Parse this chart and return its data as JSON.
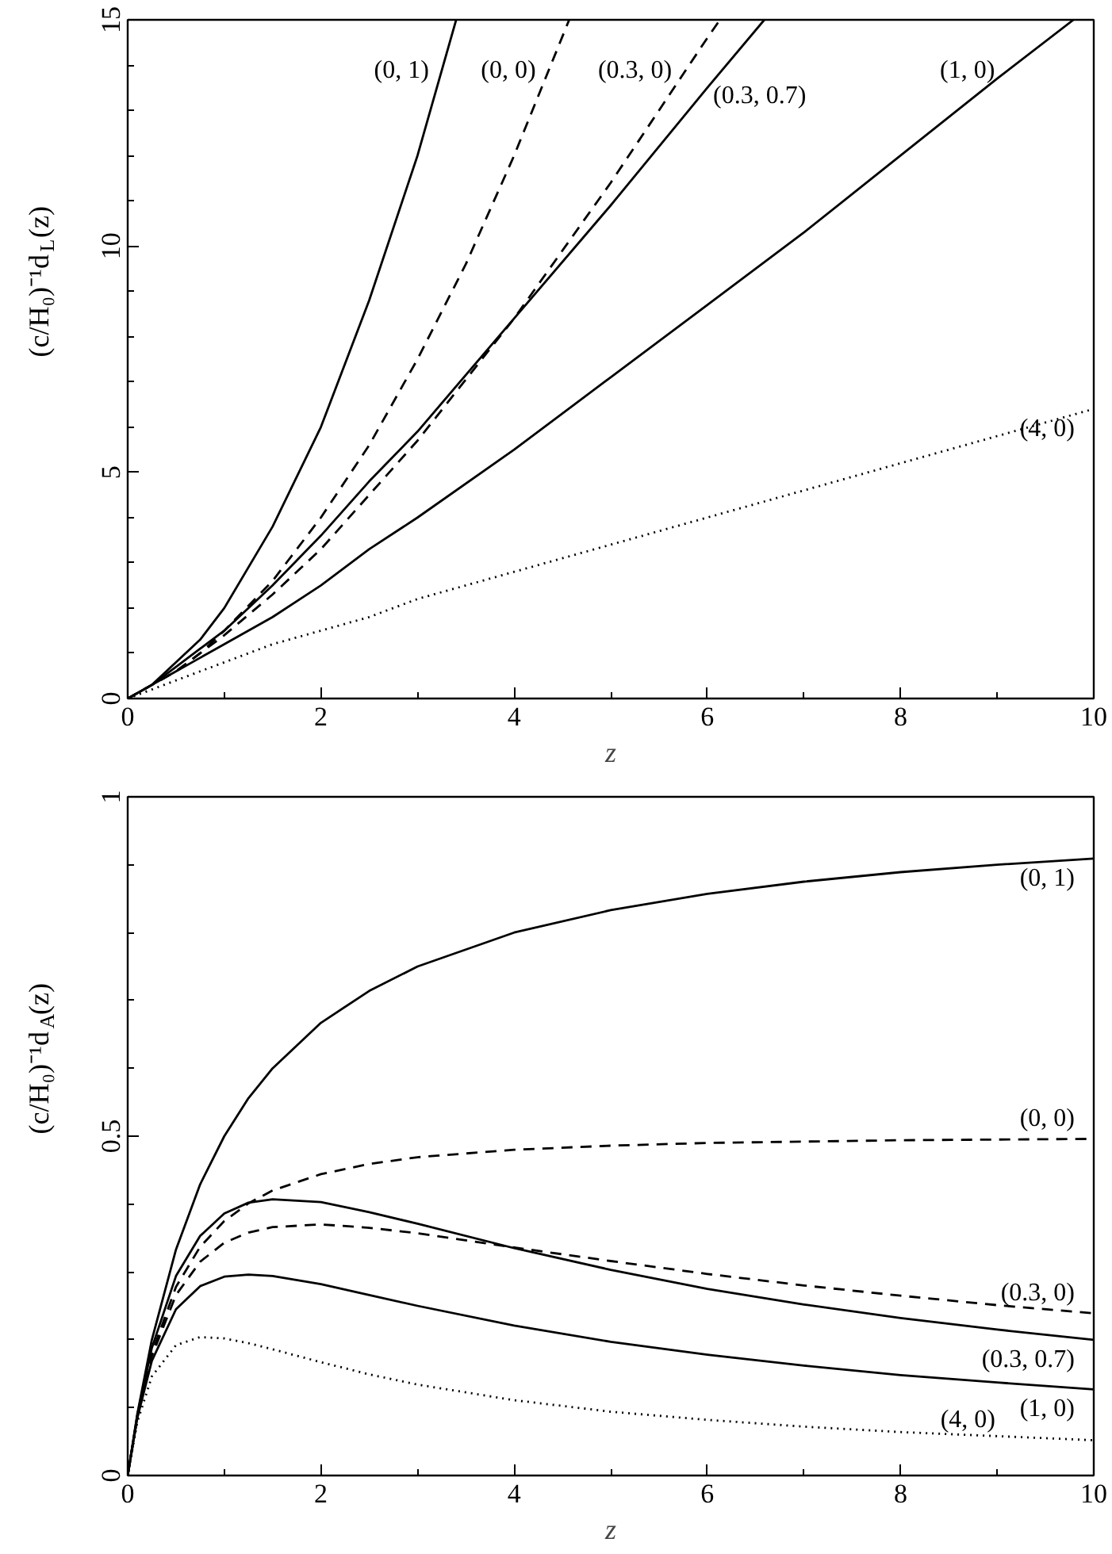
{
  "chart_data": [
    {
      "type": "line",
      "xlabel": "z",
      "ylabel": "(c/H₀)⁻¹d$_{L}$(z)",
      "xlim": [
        0,
        10
      ],
      "ylim": [
        0,
        15
      ],
      "xticks": [
        0,
        {
          "value": 1,
          "label": null
        },
        2,
        {
          "value": 3,
          "label": null
        },
        4,
        {
          "value": 5,
          "label": null
        },
        6,
        {
          "value": 7,
          "label": null
        },
        8,
        {
          "value": 9,
          "label": null
        },
        10
      ],
      "yticks": [
        0,
        {
          "value": 1,
          "label": null
        },
        {
          "value": 2,
          "label": null
        },
        {
          "value": 3,
          "label": null
        },
        {
          "value": 4,
          "label": null
        },
        5,
        {
          "value": 6,
          "label": null
        },
        {
          "value": 7,
          "label": null
        },
        {
          "value": 8,
          "label": null
        },
        {
          "value": 9,
          "label": null
        },
        10,
        {
          "value": 11,
          "label": null
        },
        {
          "value": 12,
          "label": null
        },
        {
          "value": 13,
          "label": null
        },
        {
          "value": 14,
          "label": null
        },
        15
      ],
      "series": [
        {
          "name": "(0, 1)",
          "color": "#000000",
          "line_style": "solid",
          "x": [
            0,
            0.25,
            0.5,
            0.75,
            1,
            1.5,
            2,
            2.5,
            3,
            3.4
          ],
          "values": [
            0,
            0.3,
            0.8,
            1.3,
            2,
            3.8,
            6,
            8.8,
            12,
            15
          ]
        },
        {
          "name": "(0, 0)",
          "color": "#000000",
          "line_style": "dashed",
          "x": [
            0,
            0.25,
            0.5,
            0.75,
            1,
            1.5,
            2,
            2.5,
            3,
            3.5,
            4,
            4.57
          ],
          "values": [
            0,
            0.3,
            0.6,
            1,
            1.5,
            2.6,
            4,
            5.6,
            7.5,
            9.6,
            12,
            15
          ]
        },
        {
          "name": "(0.3, 0)",
          "color": "#000000",
          "line_style": "dashed",
          "x": [
            0,
            0.25,
            0.5,
            0.75,
            1,
            1.5,
            2,
            2.5,
            3,
            4,
            5,
            6,
            6.13
          ],
          "values": [
            0,
            0.3,
            0.6,
            1,
            1.4,
            2.3,
            3.3,
            4.5,
            5.7,
            8.4,
            11.4,
            14.6,
            15
          ]
        },
        {
          "name": "(0.3, 0.7)",
          "color": "#000000",
          "line_style": "solid",
          "x": [
            0,
            0.25,
            0.5,
            0.75,
            1,
            1.5,
            2,
            2.5,
            3,
            4,
            5,
            6,
            6.59
          ],
          "values": [
            0,
            0.3,
            0.7,
            1.1,
            1.5,
            2.5,
            3.6,
            4.8,
            5.9,
            8.4,
            10.9,
            13.5,
            15
          ]
        },
        {
          "name": "(1, 0)",
          "color": "#000000",
          "line_style": "solid",
          "x": [
            0,
            0.25,
            0.5,
            0.75,
            1,
            1.5,
            2,
            2.5,
            3,
            4,
            5,
            6,
            7,
            8,
            9,
            9.79
          ],
          "values": [
            0,
            0.3,
            0.6,
            0.9,
            1.2,
            1.8,
            2.5,
            3.3,
            4,
            5.5,
            7.1,
            8.7,
            10.3,
            12,
            13.7,
            15
          ]
        },
        {
          "name": "(4, 0)",
          "color": "#000000",
          "line_style": "dotted",
          "x": [
            0,
            0.25,
            0.5,
            0.75,
            1,
            1.5,
            2,
            2.5,
            3,
            4,
            5,
            6,
            7,
            8,
            9,
            10
          ],
          "values": [
            0,
            0.2,
            0.4,
            0.6,
            0.8,
            1.2,
            1.5,
            1.8,
            2.2,
            2.8,
            3.4,
            4,
            4.6,
            5.2,
            5.8,
            6.4
          ]
        }
      ]
    },
    {
      "type": "line",
      "xlabel": "z",
      "ylabel": "(c/H₀)⁻¹d$_{A}$(z)",
      "xlim": [
        0,
        10
      ],
      "ylim": [
        0,
        1
      ],
      "xticks": [
        0,
        {
          "value": 1,
          "label": null
        },
        2,
        {
          "value": 3,
          "label": null
        },
        4,
        {
          "value": 5,
          "label": null
        },
        6,
        {
          "value": 7,
          "label": null
        },
        8,
        {
          "value": 9,
          "label": null
        },
        10
      ],
      "yticks": [
        0,
        {
          "value": 0.1,
          "label": null
        },
        {
          "value": 0.2,
          "label": null
        },
        {
          "value": 0.3,
          "label": null
        },
        {
          "value": 0.4,
          "label": null
        },
        0.5,
        {
          "value": 0.6,
          "label": null
        },
        {
          "value": 0.7,
          "label": null
        },
        {
          "value": 0.8,
          "label": null
        },
        {
          "value": 0.9,
          "label": null
        },
        1
      ],
      "x": [
        0,
        0.1,
        0.25,
        0.5,
        0.75,
        1,
        1.25,
        1.5,
        2,
        2.5,
        3,
        4,
        5,
        6,
        7,
        8,
        9,
        10
      ],
      "series": [
        {
          "name": "(0, 1)",
          "color": "#000000",
          "line_style": "solid",
          "values": [
            0,
            0.091,
            0.2,
            0.333,
            0.429,
            0.5,
            0.556,
            0.6,
            0.667,
            0.714,
            0.75,
            0.8,
            0.833,
            0.857,
            0.875,
            0.889,
            0.9,
            0.909
          ]
        },
        {
          "name": "(0, 0)",
          "color": "#000000",
          "line_style": "dashed",
          "values": [
            0,
            0.087,
            0.18,
            0.278,
            0.337,
            0.375,
            0.401,
            0.42,
            0.444,
            0.459,
            0.469,
            0.48,
            0.486,
            0.49,
            0.492,
            0.494,
            0.495,
            0.496
          ]
        },
        {
          "name": "(0.3, 0)",
          "color": "#000000",
          "line_style": "dashed",
          "values": [
            0,
            0.086,
            0.176,
            0.266,
            0.315,
            0.343,
            0.358,
            0.366,
            0.37,
            0.365,
            0.357,
            0.336,
            0.316,
            0.297,
            0.28,
            0.265,
            0.251,
            0.239
          ]
        },
        {
          "name": "(0.3, 0.7)",
          "color": "#000000",
          "line_style": "solid",
          "values": [
            0,
            0.089,
            0.188,
            0.294,
            0.353,
            0.386,
            0.402,
            0.407,
            0.403,
            0.388,
            0.371,
            0.335,
            0.303,
            0.275,
            0.252,
            0.232,
            0.215,
            0.2
          ]
        },
        {
          "name": "(1, 0)",
          "color": "#000000",
          "line_style": "solid",
          "values": [
            0,
            0.085,
            0.169,
            0.245,
            0.279,
            0.293,
            0.296,
            0.294,
            0.282,
            0.266,
            0.25,
            0.221,
            0.197,
            0.178,
            0.162,
            0.148,
            0.137,
            0.127
          ]
        },
        {
          "name": "(4, 0)",
          "color": "#000000",
          "line_style": "dotted",
          "values": [
            0,
            0.079,
            0.146,
            0.192,
            0.204,
            0.202,
            0.195,
            0.186,
            0.167,
            0.149,
            0.134,
            0.111,
            0.094,
            0.082,
            0.072,
            0.064,
            0.058,
            0.052
          ]
        }
      ]
    }
  ]
}
